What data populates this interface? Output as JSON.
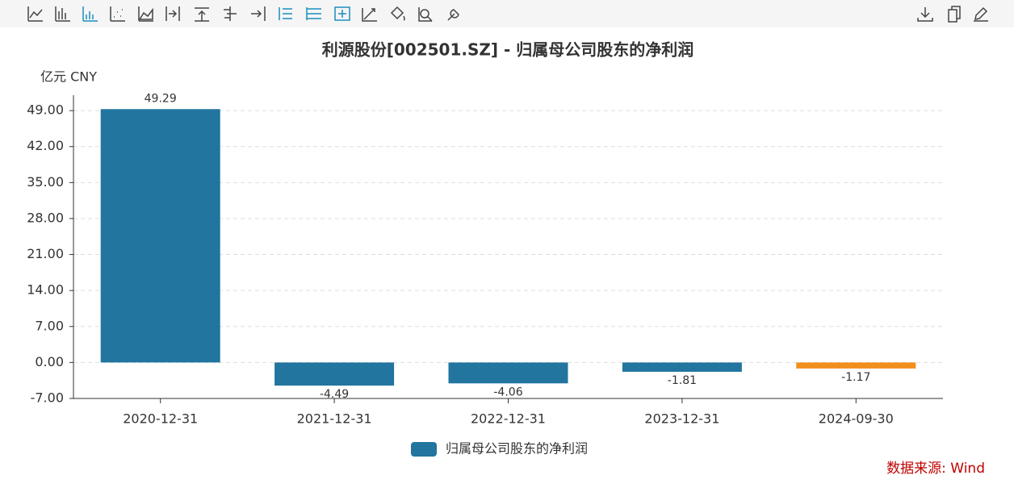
{
  "chart_data": {
    "type": "bar",
    "title": "利源股份[002501.SZ] - 归属母公司股东的净利润",
    "y_unit": "亿元  CNY",
    "categories": [
      "2020-12-31",
      "2021-12-31",
      "2022-12-31",
      "2023-12-31",
      "2024-09-30"
    ],
    "series": [
      {
        "name": "归属母公司股东的净利润",
        "color": "#21759f",
        "values": [
          49.29,
          -4.49,
          -4.06,
          -1.81,
          -1.17
        ]
      }
    ],
    "bar_colors": [
      "#21759f",
      "#21759f",
      "#21759f",
      "#21759f",
      "#f28e1c"
    ],
    "ylim": [
      -7,
      52
    ],
    "yticks": [
      {
        "value": -7,
        "label": "-7.00"
      },
      {
        "value": 0,
        "label": "0.00"
      },
      {
        "value": 7,
        "label": "7.00"
      },
      {
        "value": 14,
        "label": "14.00"
      },
      {
        "value": 21,
        "label": "21.00"
      },
      {
        "value": 28,
        "label": "28.00"
      },
      {
        "value": 35,
        "label": "35.00"
      },
      {
        "value": 42,
        "label": "42.00"
      },
      {
        "value": 49,
        "label": "49.00"
      }
    ],
    "grid": true
  },
  "source": "数据来源: Wind"
}
